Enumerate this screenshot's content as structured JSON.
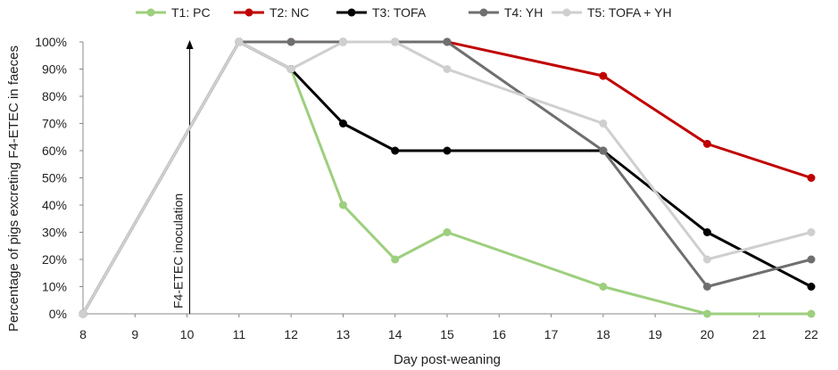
{
  "chart_data": {
    "type": "line",
    "title": "",
    "xlabel": "Day post-weaning",
    "ylabel": "Percentage of pigs excreting F4-ETEC in faeces",
    "x_ticks": [
      8,
      9,
      10,
      11,
      12,
      13,
      14,
      15,
      16,
      17,
      18,
      19,
      20,
      21,
      22
    ],
    "xlim": [
      8,
      22
    ],
    "ylim": [
      0,
      100
    ],
    "y_ticks": [
      0,
      10,
      20,
      30,
      40,
      50,
      60,
      70,
      80,
      90,
      100
    ],
    "y_tick_suffix": "%",
    "grid": false,
    "legend_position": "top",
    "annotation": {
      "text": "F4-ETEC inoculation",
      "x": 10
    },
    "series": [
      {
        "name": "T1: PC",
        "color": "#9dcf7e",
        "x": [
          8,
          11,
          12,
          13,
          14,
          15,
          18,
          20,
          22
        ],
        "values": [
          0,
          100,
          90,
          40,
          20,
          30,
          10,
          0,
          0
        ]
      },
      {
        "name": "T2: NC",
        "color": "#c00000",
        "x": [
          8,
          11,
          12,
          13,
          14,
          15,
          18,
          20,
          22
        ],
        "values": [
          0,
          100,
          100,
          100,
          100,
          100,
          87.5,
          62.5,
          50
        ]
      },
      {
        "name": "T3: TOFA",
        "color": "#000000",
        "x": [
          8,
          11,
          12,
          13,
          14,
          15,
          18,
          20,
          22
        ],
        "values": [
          0,
          100,
          90,
          70,
          60,
          60,
          60,
          30,
          10
        ]
      },
      {
        "name": "T4: YH",
        "color": "#6f6f6f",
        "x": [
          8,
          11,
          12,
          13,
          14,
          15,
          18,
          20,
          22
        ],
        "values": [
          0,
          100,
          100,
          100,
          100,
          100,
          60,
          10,
          20
        ]
      },
      {
        "name": "T5: TOFA + YH",
        "color": "#cfcfcf",
        "x": [
          8,
          11,
          12,
          13,
          14,
          15,
          18,
          20,
          22
        ],
        "values": [
          0,
          100,
          90,
          100,
          100,
          90,
          70,
          20,
          30
        ]
      }
    ]
  }
}
